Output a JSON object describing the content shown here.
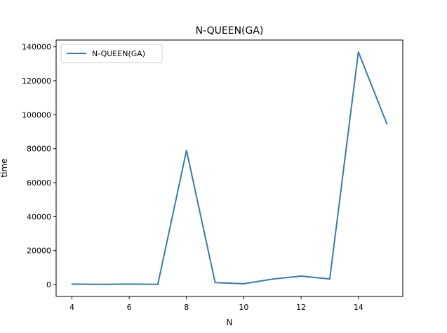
{
  "chart_data": {
    "type": "line",
    "title": "N-QUEEN(GA)",
    "xlabel": "N",
    "ylabel": "time",
    "xlim": [
      3.45,
      15.55
    ],
    "ylim": [
      -7000,
      144000
    ],
    "x_ticks": [
      4,
      6,
      8,
      10,
      12,
      14
    ],
    "y_ticks": [
      0,
      20000,
      40000,
      60000,
      80000,
      100000,
      120000,
      140000
    ],
    "grid": false,
    "legend_position": "top-left",
    "series": [
      {
        "name": "N-QUEEN(GA)",
        "color": "#3a7ca5",
        "x": [
          4,
          5,
          6,
          7,
          8,
          9,
          10,
          11,
          12,
          13,
          14,
          15
        ],
        "values": [
          300,
          100,
          300,
          100,
          79000,
          1200,
          500,
          3200,
          5000,
          3300,
          137000,
          94500
        ]
      }
    ]
  }
}
